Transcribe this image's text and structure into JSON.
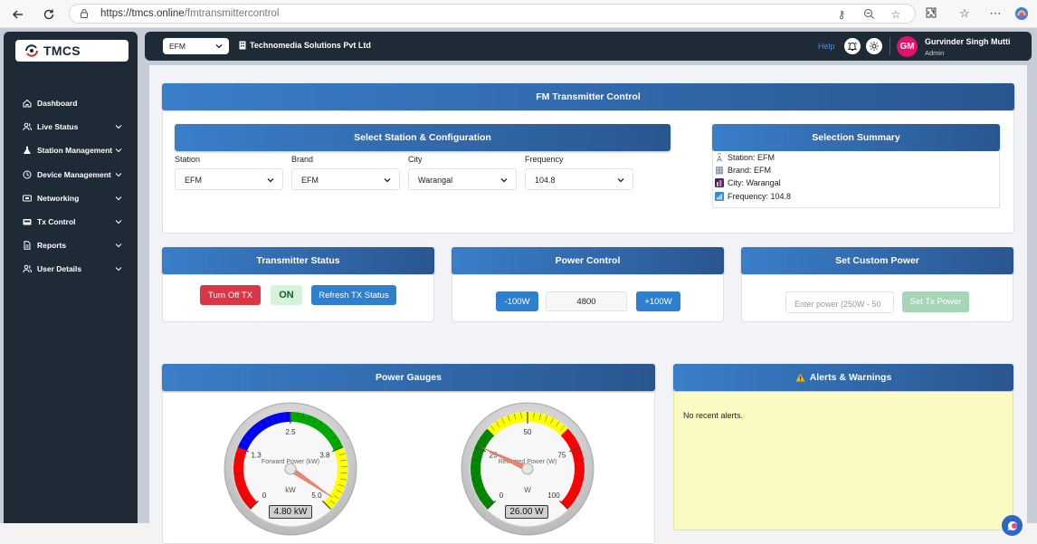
{
  "browser": {
    "url_host": "https://tmcs.online",
    "url_path": "/fmtransmittercontrol"
  },
  "sidebar": {
    "logo_text": "TMCS",
    "items": [
      {
        "label": "Dashboard",
        "icon": "home-icon",
        "has_chevron": false
      },
      {
        "label": "Live Status",
        "icon": "users-icon",
        "has_chevron": true
      },
      {
        "label": "Station Management",
        "icon": "flask-icon",
        "has_chevron": true
      },
      {
        "label": "Device Management",
        "icon": "clock-icon",
        "has_chevron": true
      },
      {
        "label": "Networking",
        "icon": "network-icon",
        "has_chevron": true
      },
      {
        "label": "Tx Control",
        "icon": "tx-icon",
        "has_chevron": true
      },
      {
        "label": "Reports",
        "icon": "file-icon",
        "has_chevron": true
      },
      {
        "label": "User Details",
        "icon": "users-icon",
        "has_chevron": true
      }
    ]
  },
  "topbar": {
    "brand_select": "EFM",
    "company": "Technomedia Solutions Pvt Ltd",
    "help": "Help",
    "avatar_initials": "GM",
    "user_name": "Gurvinder Singh Mutti",
    "user_role": "Admin"
  },
  "fm_control": {
    "title": "FM Transmitter Control",
    "config_title": "Select Station & Configuration",
    "summary_title": "Selection Summary",
    "fields": [
      {
        "label": "Station",
        "value": "EFM"
      },
      {
        "label": "Brand",
        "value": "EFM"
      },
      {
        "label": "City",
        "value": "Warangal"
      },
      {
        "label": "Frequency",
        "value": "104.8"
      }
    ],
    "summary": [
      {
        "text": "Station: EFM",
        "icon": "antenna-icon"
      },
      {
        "text": "Brand: EFM",
        "icon": "building-icon"
      },
      {
        "text": "City: Warangal",
        "icon": "city-icon"
      },
      {
        "text": "Frequency: 104.8",
        "icon": "signal-icon"
      }
    ]
  },
  "tx_status": {
    "title": "Transmitter Status",
    "turn_off": "Turn Off TX",
    "state": "ON",
    "refresh": "Refresh TX Status"
  },
  "power_control": {
    "title": "Power Control",
    "minus": "-100W",
    "value": "4800",
    "plus": "+100W"
  },
  "custom_power": {
    "title": "Set Custom Power",
    "placeholder": "Enter power (250W - 50",
    "button": "Set Tx Power"
  },
  "gauges": {
    "title": "Power Gauges",
    "forward": {
      "label": "Forward Power (kW)",
      "unit": "kW",
      "min": 0,
      "max": 5.0,
      "ticks": [
        "0",
        "1.3",
        "2.5",
        "3.8",
        "5.0"
      ],
      "value": 4.8,
      "readout": "4.80 kW",
      "colors": [
        "#ff0000",
        "#0000ff",
        "#00aa00",
        "#ffff00"
      ]
    },
    "reflected": {
      "label": "Reflected Power (W)",
      "unit": "W",
      "min": 0,
      "max": 100,
      "ticks": [
        "0",
        "25",
        "50",
        "75",
        "100"
      ],
      "value": 26.0,
      "readout": "26.00 W",
      "colors": [
        "#008800",
        "#ffff00",
        "#ff0000"
      ]
    }
  },
  "alerts": {
    "title": "Alerts & Warnings",
    "empty": "No recent alerts."
  }
}
